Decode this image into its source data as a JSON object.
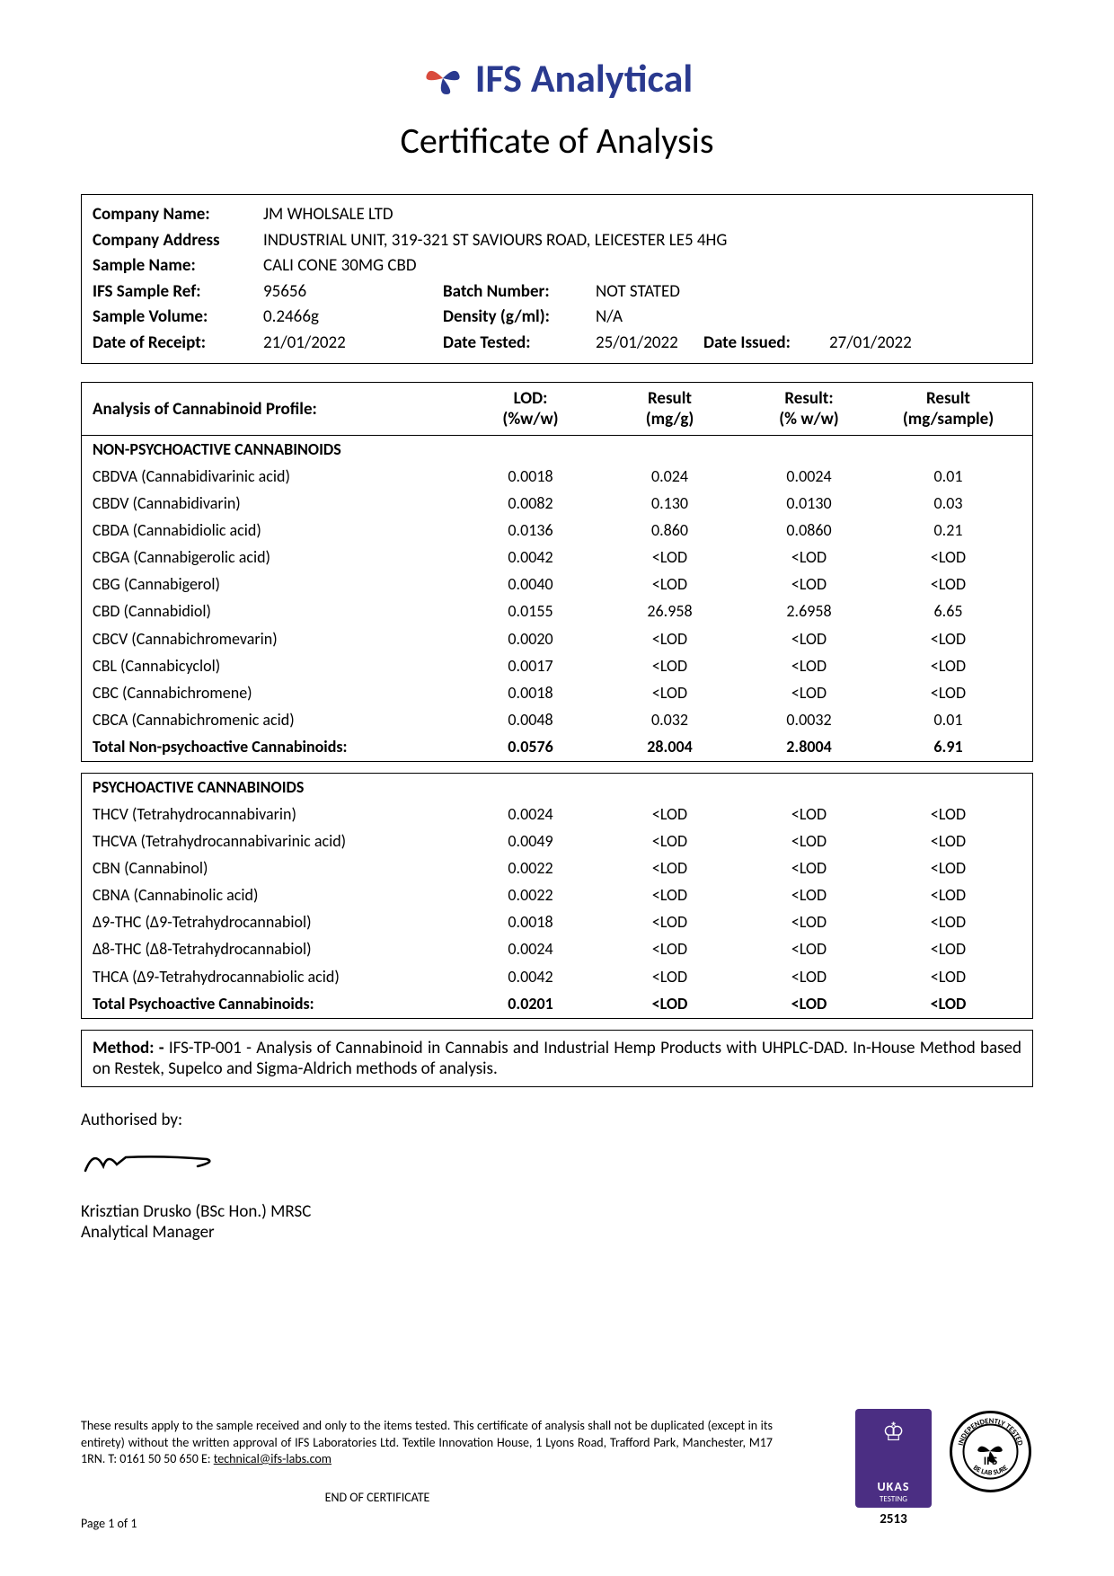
{
  "header": {
    "company_name": "IFS Analytical",
    "subtitle": "Certificate of Analysis",
    "logo_color_1": "#d94b3d",
    "logo_color_2": "#2a3a8f"
  },
  "info": {
    "labels": {
      "company_name": "Company Name:",
      "company_address": "Company Address",
      "sample_name": "Sample Name:",
      "ifs_sample_ref": "IFS Sample Ref:",
      "sample_volume": "Sample Volume:",
      "date_receipt": "Date of Receipt:",
      "batch_number": "Batch Number:",
      "density": "Density (g/ml):",
      "date_tested": "Date Tested:",
      "date_issued": "Date Issued:"
    },
    "company_name": "JM WHOLSALE LTD",
    "company_address": "INDUSTRIAL UNIT, 319-321 ST SAVIOURS ROAD, LEICESTER LE5 4HG",
    "sample_name": "CALI CONE 30MG CBD",
    "ifs_sample_ref": "95656",
    "sample_volume": "0.2466g",
    "date_receipt": "21/01/2022",
    "batch_number": "NOT STATED",
    "density": "N/A",
    "date_tested": "25/01/2022",
    "date_issued": "27/01/2022"
  },
  "table": {
    "title": "Analysis of Cannabinoid Profile:",
    "headers": {
      "lod": "LOD:",
      "lod_unit": "(%w/w)",
      "r1": "Result",
      "r1_unit": "(mg/g)",
      "r2": "Result:",
      "r2_unit": "(% w/w)",
      "r3": "Result",
      "r3_unit": "(mg/sample)"
    },
    "section1_title": "NON-PSYCHOACTIVE CANNABINOIDS",
    "non_psycho": [
      {
        "name": "CBDVA (Cannabidivarinic acid)",
        "lod": "0.0018",
        "r1": "0.024",
        "r2": "0.0024",
        "r3": "0.01"
      },
      {
        "name": "CBDV (Cannabidivarin)",
        "lod": "0.0082",
        "r1": "0.130",
        "r2": "0.0130",
        "r3": "0.03"
      },
      {
        "name": "CBDA (Cannabidiolic acid)",
        "lod": "0.0136",
        "r1": "0.860",
        "r2": "0.0860",
        "r3": "0.21"
      },
      {
        "name": "CBGA (Cannabigerolic acid)",
        "lod": "0.0042",
        "r1": "<LOD",
        "r2": "<LOD",
        "r3": "<LOD"
      },
      {
        "name": "CBG (Cannabigerol)",
        "lod": "0.0040",
        "r1": "<LOD",
        "r2": "<LOD",
        "r3": "<LOD"
      },
      {
        "name": "CBD (Cannabidiol)",
        "lod": "0.0155",
        "r1": "26.958",
        "r2": "2.6958",
        "r3": "6.65"
      },
      {
        "name": "CBCV (Cannabichromevarin)",
        "lod": "0.0020",
        "r1": "<LOD",
        "r2": "<LOD",
        "r3": "<LOD"
      },
      {
        "name": "CBL (Cannabicyclol)",
        "lod": "0.0017",
        "r1": "<LOD",
        "r2": "<LOD",
        "r3": "<LOD"
      },
      {
        "name": "CBC (Cannabichromene)",
        "lod": "0.0018",
        "r1": "<LOD",
        "r2": "<LOD",
        "r3": "<LOD"
      },
      {
        "name": "CBCA (Cannabichromenic acid)",
        "lod": "0.0048",
        "r1": "0.032",
        "r2": "0.0032",
        "r3": "0.01"
      }
    ],
    "non_psycho_total": {
      "name": "Total Non-psychoactive Cannabinoids:",
      "lod": "0.0576",
      "r1": "28.004",
      "r2": "2.8004",
      "r3": "6.91"
    },
    "section2_title": "PSYCHOACTIVE CANNABINOIDS",
    "psycho": [
      {
        "name": "THCV (Tetrahydrocannabivarin)",
        "lod": "0.0024",
        "r1": "<LOD",
        "r2": "<LOD",
        "r3": "<LOD"
      },
      {
        "name": "THCVA (Tetrahydrocannabivarinic acid)",
        "lod": "0.0049",
        "r1": "<LOD",
        "r2": "<LOD",
        "r3": "<LOD"
      },
      {
        "name": "CBN (Cannabinol)",
        "lod": "0.0022",
        "r1": "<LOD",
        "r2": "<LOD",
        "r3": "<LOD"
      },
      {
        "name": "CBNA (Cannabinolic acid)",
        "lod": "0.0022",
        "r1": "<LOD",
        "r2": "<LOD",
        "r3": "<LOD"
      },
      {
        "name": "Δ9-THC (Δ9-Tetrahydrocannabiol)",
        "lod": "0.0018",
        "r1": "<LOD",
        "r2": "<LOD",
        "r3": "<LOD"
      },
      {
        "name": "Δ8-THC (Δ8-Tetrahydrocannabiol)",
        "lod": "0.0024",
        "r1": "<LOD",
        "r2": "<LOD",
        "r3": "<LOD"
      },
      {
        "name": "THCA (Δ9-Tetrahydrocannabiolic acid)",
        "lod": "0.0042",
        "r1": "<LOD",
        "r2": "<LOD",
        "r3": "<LOD"
      }
    ],
    "psycho_total": {
      "name": "Total Psychoactive Cannabinoids:",
      "lod": "0.0201",
      "r1": "<LOD",
      "r2": "<LOD",
      "r3": "<LOD"
    }
  },
  "method": {
    "label": "Method: - ",
    "text": "IFS-TP-001 - Analysis of Cannabinoid in Cannabis and Industrial Hemp Products with UHPLC-DAD. In-House Method based on Restek, Supelco and Sigma-Aldrich methods of analysis."
  },
  "auth": {
    "label": "Authorised by:",
    "name": "Krisztian Drusko (BSc Hon.) MRSC",
    "title": "Analytical Manager"
  },
  "footer": {
    "disclaimer": "These results apply to the sample received and only to the items tested. This certificate of analysis shall not be duplicated (except in its entirety) without the written approval of IFS Laboratories Ltd. Textile Innovation House, 1 Lyons Road, Trafford Park, Manchester, M17 1RN. T: 0161 50 50 650 E: ",
    "email": "technical@ifs-labs.com",
    "end": "END OF CERTIFICATE",
    "page": "Page 1 of 1",
    "ukas_label": "UKAS",
    "ukas_testing": "TESTING",
    "ukas_num": "2513"
  }
}
